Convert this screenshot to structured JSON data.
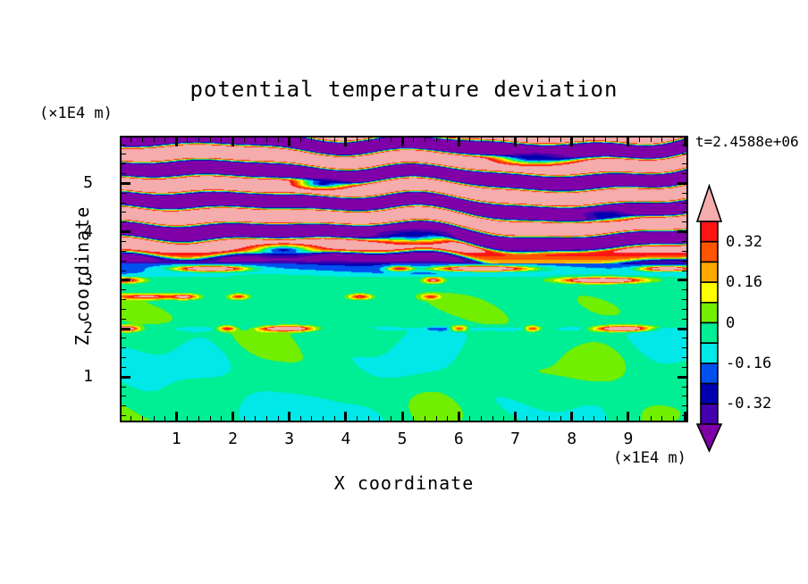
{
  "chart_data": {
    "type": "heatmap",
    "title": "potential temperature deviation",
    "time_label": "t=2.4588e+06",
    "x_axis": {
      "label": "X coordinate",
      "unit": "(×1E4 m)",
      "range": [
        0.03,
        10.03
      ],
      "major_ticks": [
        1,
        2,
        3,
        4,
        5,
        6,
        7,
        8,
        9
      ],
      "minor_step": 0.2
    },
    "z_axis": {
      "label": "Z coordinate",
      "unit": "(×1E4 m)",
      "range": [
        0.1,
        5.95
      ],
      "major_ticks": [
        1,
        2,
        3,
        4,
        5
      ],
      "minor_step": 0.2
    },
    "colorbar": {
      "levels": [
        -0.4,
        -0.32,
        -0.24,
        -0.16,
        -0.08,
        0,
        0.08,
        0.16,
        0.24,
        0.32,
        0.4
      ],
      "colors_low_to_high": [
        "#4400AC",
        "#0000B0",
        "#0050F0",
        "#00E8E8",
        "#00EE94",
        "#72EE00",
        "#FFFF00",
        "#FFA800",
        "#FF5400",
        "#FF1414"
      ],
      "under_color": "#8000A8",
      "over_color": "#F5ACAC",
      "tick_labels": [
        {
          "text": "0.32",
          "level": 0.32
        },
        {
          "text": "0.16",
          "level": 0.16
        },
        {
          "text": "0",
          "level": 0
        },
        {
          "text": "-0.16",
          "level": -0.16
        },
        {
          "text": "-0.32",
          "level": -0.32
        }
      ]
    },
    "field": {
      "description": "filled-contour potential temperature deviation: breaking gravity-wave bands aloft, shear stripe near z=3, inversion line at z=2, convective plumes below",
      "contour_interval": 0.08,
      "wave_region": {
        "z_min": 3.34,
        "band_wavelength_z": 0.62,
        "amplitude": 0.6,
        "mean_offset": 0.04
      },
      "shear_stripe": {
        "z_min": 3.08,
        "top_value": -0.22,
        "bottom_value": -0.1
      },
      "mixed_region": {
        "z_min": 2.02,
        "background": -0.045,
        "fleck_center_z": 2.42
      },
      "convective_region": {
        "background": -0.045,
        "plume_amplitude": 0.075
      },
      "navy_patches": [
        [
          5.2,
          3.93,
          0.85,
          0.16
        ],
        [
          7.35,
          5.52,
          0.7,
          0.14
        ],
        [
          2.9,
          3.62,
          0.55,
          0.12
        ],
        [
          8.6,
          4.35,
          0.5,
          0.12
        ],
        [
          3.6,
          5.0,
          0.5,
          0.12
        ]
      ],
      "filament_rows": [
        {
          "z": 3.24,
          "bumps": [
            [
              1.6,
              0.55,
              0.95
            ],
            [
              4.95,
              0.22,
              0.6
            ],
            [
              6.4,
              0.75,
              1.0
            ],
            [
              9.7,
              0.45,
              0.9
            ]
          ]
        },
        {
          "z": 3.0,
          "bumps": [
            [
              0.05,
              0.3,
              0.6
            ],
            [
              5.55,
              0.15,
              0.5
            ],
            [
              8.55,
              0.6,
              0.95
            ]
          ]
        },
        {
          "z": 2.66,
          "bumps": [
            [
              0.5,
              0.55,
              0.5
            ],
            [
              1.15,
              0.2,
              0.45
            ],
            [
              2.1,
              0.15,
              0.4
            ],
            [
              4.25,
              0.18,
              0.45
            ],
            [
              5.5,
              0.15,
              0.35
            ]
          ]
        },
        {
          "z": 2.0,
          "cyan_dashes": true,
          "bumps": [
            [
              0.1,
              0.2,
              0.9
            ],
            [
              1.9,
              0.15,
              0.45
            ],
            [
              2.95,
              0.45,
              0.85
            ],
            [
              6.0,
              0.15,
              0.5
            ],
            [
              7.3,
              0.12,
              0.4
            ],
            [
              8.95,
              0.45,
              0.9
            ]
          ]
        }
      ]
    }
  }
}
